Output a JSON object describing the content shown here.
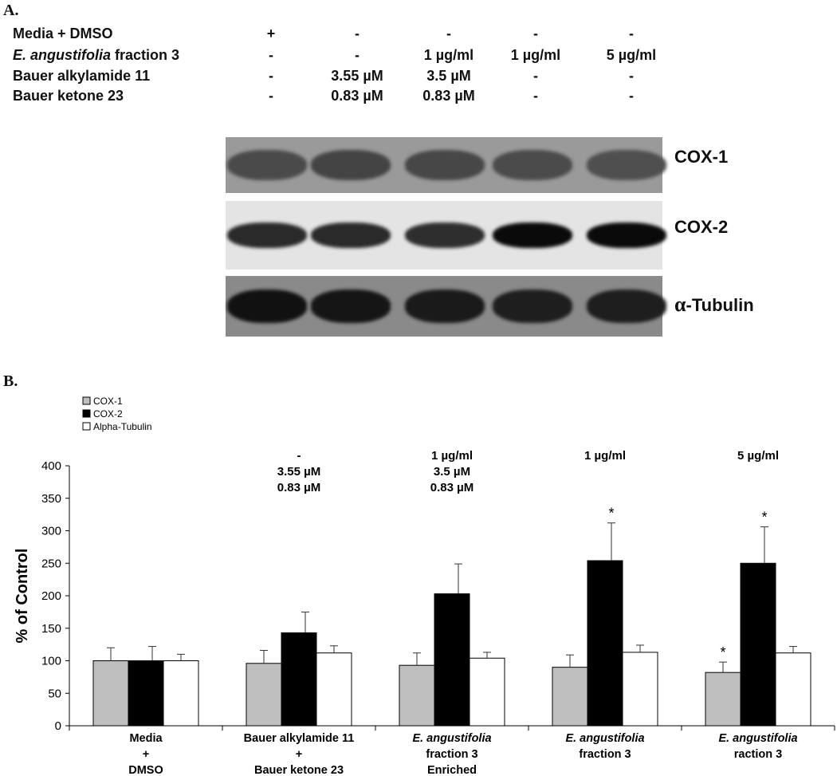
{
  "panel_a": {
    "label": "A.",
    "conditions": [
      {
        "name": "Media + DMSO",
        "values": [
          "+",
          "-",
          "-",
          "-",
          "-"
        ]
      },
      {
        "name_italic": "E. angustifolia",
        "name_rest": " fraction 3",
        "values": [
          "-",
          "-",
          "1 µg/ml",
          "1 µg/ml",
          "5 µg/ml"
        ]
      },
      {
        "name": "Bauer alkylamide 11",
        "values": [
          "-",
          "3.55 µM",
          "3.5 µM",
          "-",
          "-"
        ]
      },
      {
        "name": "Bauer ketone 23",
        "values": [
          "-",
          "0.83 µM",
          "0.83 µM",
          "-",
          "-"
        ]
      }
    ],
    "blots": [
      {
        "label": "COX-1",
        "band_colors": [
          "#4a4a4a",
          "#444444",
          "#474747",
          "#4b4b4b",
          "#4f4f4f"
        ],
        "background": "#9a9a9a"
      },
      {
        "label": "COX-2",
        "band_colors": [
          "#2a2a2a",
          "#2a2a2a",
          "#2e2e2e",
          "#0a0a0a",
          "#0a0a0a"
        ],
        "background": "#e4e4e4"
      },
      {
        "label_greek": "α",
        "label_rest": "-Tubulin",
        "band_colors": [
          "#111111",
          "#151515",
          "#1a1a1a",
          "#1e1e1e",
          "#1e1e1e"
        ],
        "background": "#8a8a8a"
      }
    ]
  },
  "panel_b": {
    "label": "B."
  },
  "chart_data": {
    "type": "bar",
    "ylabel": "% of Control",
    "xlabel": "",
    "ylim": [
      0,
      400
    ],
    "yticks": [
      0,
      50,
      100,
      150,
      200,
      250,
      300,
      350,
      400
    ],
    "legend_position": "top-left",
    "categories": [
      {
        "lines": [
          {
            "text": "Media"
          },
          {
            "text": "+"
          },
          {
            "text": "DMSO"
          }
        ]
      },
      {
        "lines": [
          {
            "text": "Bauer alkylamide 11"
          },
          {
            "text": "+"
          },
          {
            "text": "Bauer ketone 23"
          }
        ]
      },
      {
        "lines": [
          {
            "italic": "E. angustifolia"
          },
          {
            "text": "fraction 3"
          },
          {
            "text": "Enriched"
          }
        ]
      },
      {
        "lines": [
          {
            "italic": "E. angustifolia"
          },
          {
            "text": "fraction 3"
          }
        ]
      },
      {
        "lines": [
          {
            "italic": "E. angustifolia"
          },
          {
            "text": "raction 3"
          }
        ]
      }
    ],
    "category_annotations": [
      [],
      [
        "-",
        "3.55 µM",
        "0.83 µM"
      ],
      [
        "1 µg/ml",
        "3.5 µM",
        "0.83 µM"
      ],
      [
        "1 µg/ml"
      ],
      [
        "5 µg/ml"
      ]
    ],
    "series": [
      {
        "name": "COX-1",
        "color": "#bfbfbf",
        "values": [
          100,
          96,
          93,
          90,
          82
        ],
        "errors": [
          20,
          20,
          19,
          19,
          16
        ],
        "significant": [
          false,
          false,
          false,
          false,
          true
        ]
      },
      {
        "name": "COX-2",
        "color": "#000000",
        "values": [
          100,
          143,
          203,
          254,
          250
        ],
        "errors": [
          22,
          32,
          46,
          58,
          56
        ],
        "significant": [
          false,
          false,
          false,
          true,
          true
        ]
      },
      {
        "name": "Alpha-Tubulin",
        "color": "#ffffff",
        "values": [
          100,
          112,
          104,
          113,
          112
        ],
        "errors": [
          10,
          11,
          9,
          11,
          10
        ],
        "significant": [
          false,
          false,
          false,
          false,
          false
        ]
      }
    ],
    "significance_marker": "*"
  }
}
